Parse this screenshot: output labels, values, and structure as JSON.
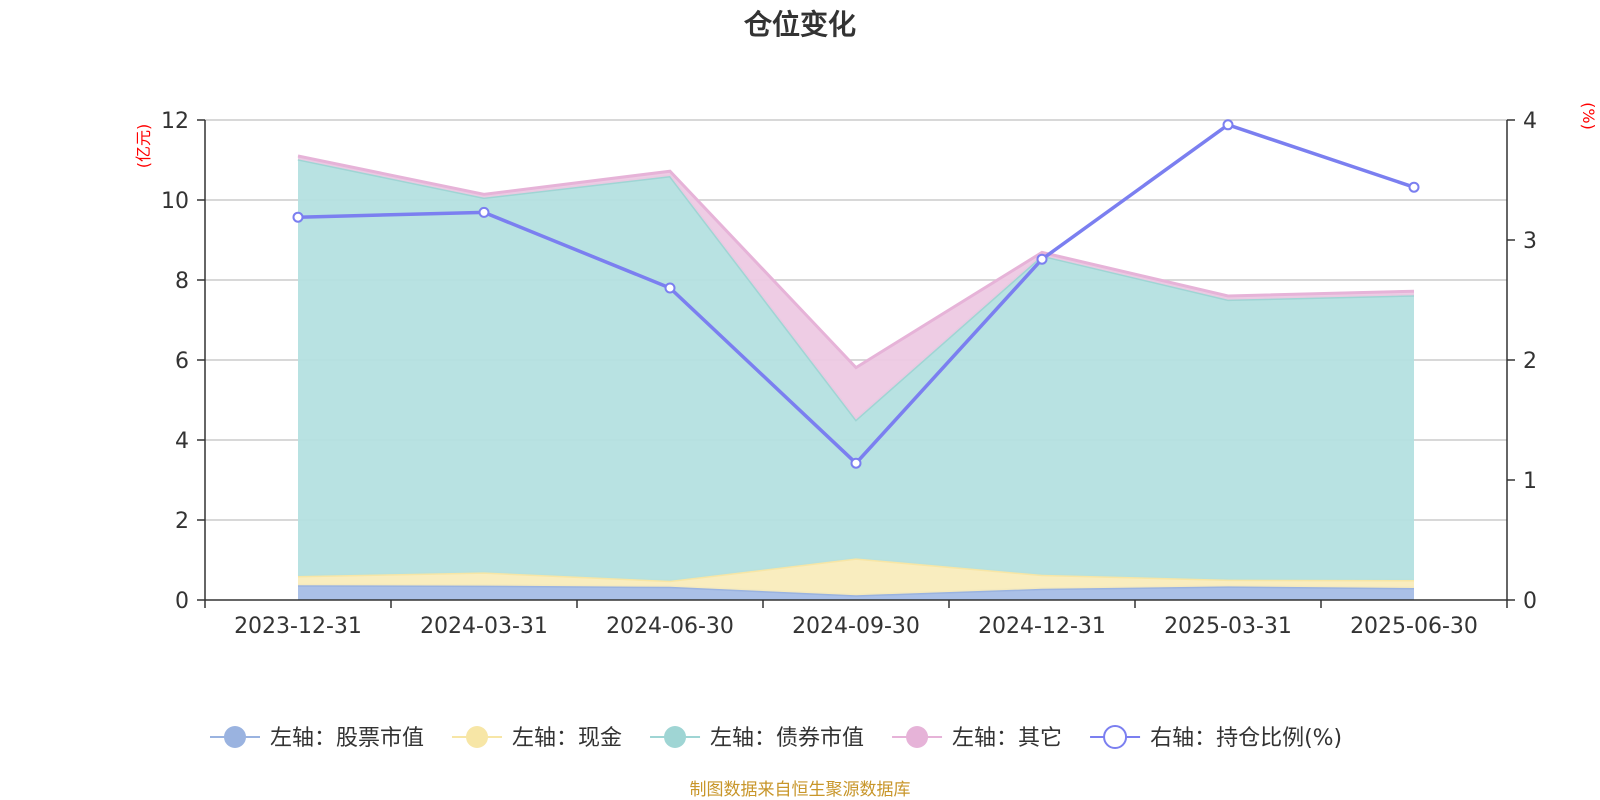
{
  "chart_data": {
    "type": "area",
    "title": "仓位变化",
    "categories": [
      "2023-12-31",
      "2024-03-31",
      "2024-06-30",
      "2024-09-30",
      "2024-12-31",
      "2025-03-31",
      "2025-06-30"
    ],
    "left_axis": {
      "unit": "(亿元)",
      "ylim": [
        0,
        12
      ],
      "ticks": [
        0,
        2,
        4,
        6,
        8,
        10,
        12
      ]
    },
    "right_axis": {
      "unit": "(%)",
      "ylim": [
        0,
        4
      ],
      "ticks": [
        0,
        1,
        2,
        3,
        4
      ]
    },
    "series": [
      {
        "name": "左轴：股票市值",
        "axis": "left",
        "stack": true,
        "color": "#a5bde6",
        "line": "#9ab3e0",
        "values": [
          0.37,
          0.36,
          0.33,
          0.12,
          0.28,
          0.34,
          0.3
        ]
      },
      {
        "name": "左轴：现金",
        "axis": "left",
        "stack": true,
        "color": "#f9ecbc",
        "line": "#f7e6a6",
        "values": [
          0.23,
          0.33,
          0.15,
          0.92,
          0.35,
          0.17,
          0.2
        ]
      },
      {
        "name": "左轴：债券市值",
        "axis": "left",
        "stack": true,
        "color": "#b4e0e0",
        "line": "#9fd5d4",
        "values": [
          10.42,
          9.37,
          10.12,
          3.47,
          7.98,
          7.0,
          7.12
        ]
      },
      {
        "name": "左轴：其它",
        "axis": "left",
        "stack": true,
        "color": "#edc9e3",
        "line": "#e6b3d8",
        "values": [
          0.08,
          0.08,
          0.12,
          1.3,
          0.08,
          0.09,
          0.1
        ]
      },
      {
        "name": "右轴：持仓比例(%)",
        "axis": "right",
        "type": "line",
        "color": "#7b7ff0",
        "values": [
          3.19,
          3.23,
          2.6,
          1.14,
          2.84,
          3.96,
          3.44
        ]
      }
    ],
    "grid": true,
    "legend_position": "bottom"
  },
  "source_text": "制图数据来自恒生聚源数据库"
}
